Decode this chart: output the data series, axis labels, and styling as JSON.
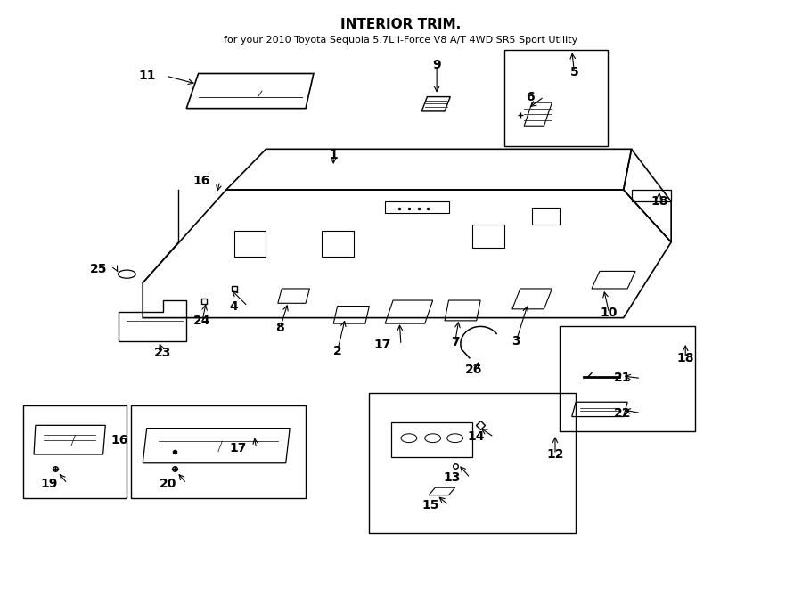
{
  "title": "INTERIOR TRIM.",
  "subtitle": "for your 2010 Toyota Sequoia 5.7L i-Force V8 A/T 4WD SR5 Sport Utility",
  "bg_color": "#ffffff",
  "line_color": "#000000",
  "label_fontsize": 10,
  "title_fontsize": 11,
  "fig_width": 9.0,
  "fig_height": 6.61,
  "dpi": 100
}
